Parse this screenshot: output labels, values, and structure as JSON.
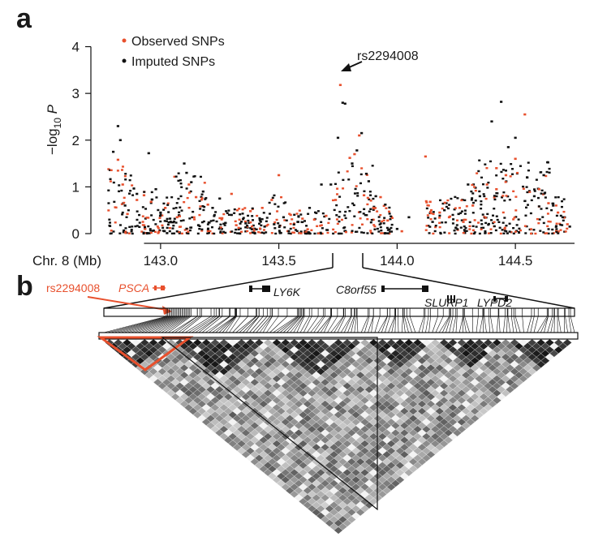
{
  "panel_a": {
    "label": "a",
    "legend": {
      "observed": "Observed SNPs",
      "imputed": "Imputed SNPs"
    },
    "annotation": "rs2294008",
    "x_title": "Chr. 8 (Mb)"
  },
  "panel_b": {
    "label": "b",
    "snp_label": "rs2294008",
    "genes": {
      "psca": "PSCA",
      "ly6k": "LY6K",
      "c8orf55": "C8orf55",
      "slurp1": "SLURP1",
      "lypd2": "LYPD2"
    }
  },
  "colors": {
    "observed": "#e8502d",
    "imputed": "#111111",
    "highlight": "#e8502d"
  },
  "chart_data": {
    "type": "scatter",
    "title": "",
    "xlabel": "Chr. 8 (Mb)",
    "ylabel": "-log10 P",
    "xlim": [
      142.75,
      144.75
    ],
    "ylim": [
      0,
      4.2
    ],
    "xticks": [
      143.0,
      143.5,
      144.0,
      144.5
    ],
    "xtick_labels": [
      "143.0",
      "143.5",
      "144.0",
      "144.5"
    ],
    "yticks": [
      0,
      1,
      2,
      3,
      4
    ],
    "ytick_labels": [
      "0",
      "1",
      "2",
      "3",
      "4"
    ],
    "legend_position": "top-left",
    "series": [
      {
        "name": "Observed SNPs",
        "points": [
          [
            142.82,
            1.58
          ],
          [
            142.84,
            1.05
          ],
          [
            142.86,
            0.42
          ],
          [
            142.9,
            0.72
          ],
          [
            142.96,
            0.68
          ],
          [
            143.02,
            0.55
          ],
          [
            143.07,
            0.35
          ],
          [
            143.12,
            1.05
          ],
          [
            143.15,
            0.78
          ],
          [
            143.2,
            0.62
          ],
          [
            143.26,
            0.33
          ],
          [
            143.32,
            0.18
          ],
          [
            143.38,
            0.48
          ],
          [
            143.43,
            0.55
          ],
          [
            143.47,
            0.72
          ],
          [
            143.5,
            1.25
          ],
          [
            143.55,
            0.4
          ],
          [
            143.6,
            0.32
          ],
          [
            143.65,
            0.3
          ],
          [
            143.7,
            0.38
          ],
          [
            143.74,
            0.72
          ],
          [
            143.76,
            3.18
          ],
          [
            143.8,
            1.62
          ],
          [
            143.82,
            1.7
          ],
          [
            143.84,
            2.1
          ],
          [
            143.86,
            0.82
          ],
          [
            143.9,
            0.55
          ],
          [
            143.93,
            0.78
          ],
          [
            143.96,
            0.28
          ],
          [
            144.02,
            0.05
          ],
          [
            144.12,
            1.65
          ],
          [
            144.14,
            0.68
          ],
          [
            144.18,
            0.45
          ],
          [
            144.22,
            0.35
          ],
          [
            144.28,
            0.25
          ],
          [
            144.32,
            0.6
          ],
          [
            144.38,
            1.05
          ],
          [
            144.42,
            1.4
          ],
          [
            144.46,
            1.25
          ],
          [
            144.5,
            1.6
          ],
          [
            144.54,
            2.55
          ],
          [
            144.6,
            0.95
          ],
          [
            144.64,
            0.65
          ],
          [
            144.68,
            0.45
          ],
          [
            144.72,
            0.2
          ],
          [
            144.42,
            0.95
          ],
          [
            143.3,
            0.85
          ],
          [
            142.93,
            0.82
          ]
        ]
      },
      {
        "name": "Imputed SNPs",
        "points": [
          [
            142.82,
            2.3
          ],
          [
            142.83,
            2.0
          ],
          [
            142.8,
            1.75
          ],
          [
            142.85,
            0.6
          ],
          [
            142.9,
            0.85
          ],
          [
            142.95,
            1.72
          ],
          [
            142.98,
            0.95
          ],
          [
            143.0,
            0.45
          ],
          [
            143.1,
            1.5
          ],
          [
            143.11,
            1.3
          ],
          [
            143.13,
            1.1
          ],
          [
            143.18,
            0.9
          ],
          [
            143.22,
            0.55
          ],
          [
            143.25,
            0.75
          ],
          [
            143.3,
            0.4
          ],
          [
            143.36,
            0.22
          ],
          [
            143.42,
            0.3
          ],
          [
            143.48,
            0.2
          ],
          [
            143.52,
            0.35
          ],
          [
            143.58,
            0.25
          ],
          [
            143.63,
            0.55
          ],
          [
            143.68,
            1.05
          ],
          [
            143.72,
            1.05
          ],
          [
            143.75,
            2.05
          ],
          [
            143.77,
            2.8
          ],
          [
            143.78,
            2.78
          ],
          [
            143.81,
            1.5
          ],
          [
            143.83,
            1.78
          ],
          [
            143.85,
            2.15
          ],
          [
            143.87,
            1.28
          ],
          [
            143.88,
            1.12
          ],
          [
            143.91,
            0.8
          ],
          [
            143.95,
            0.62
          ],
          [
            144.0,
            0.1
          ],
          [
            144.05,
            0.35
          ],
          [
            144.15,
            0.25
          ],
          [
            144.2,
            0.5
          ],
          [
            144.26,
            0.42
          ],
          [
            144.3,
            1.05
          ],
          [
            144.35,
            0.8
          ],
          [
            144.4,
            2.4
          ],
          [
            144.44,
            2.82
          ],
          [
            144.47,
            1.85
          ],
          [
            144.5,
            2.05
          ],
          [
            144.55,
            1.2
          ],
          [
            144.58,
            0.8
          ],
          [
            144.62,
            1.25
          ],
          [
            144.66,
            0.6
          ],
          [
            144.7,
            0.35
          ],
          [
            144.73,
            0.15
          ],
          [
            143.04,
            0.32
          ],
          [
            143.16,
            0.18
          ],
          [
            143.44,
            0.15
          ]
        ]
      }
    ],
    "annotation": {
      "text": "rs2294008",
      "x": 143.76,
      "y": 3.18
    }
  }
}
